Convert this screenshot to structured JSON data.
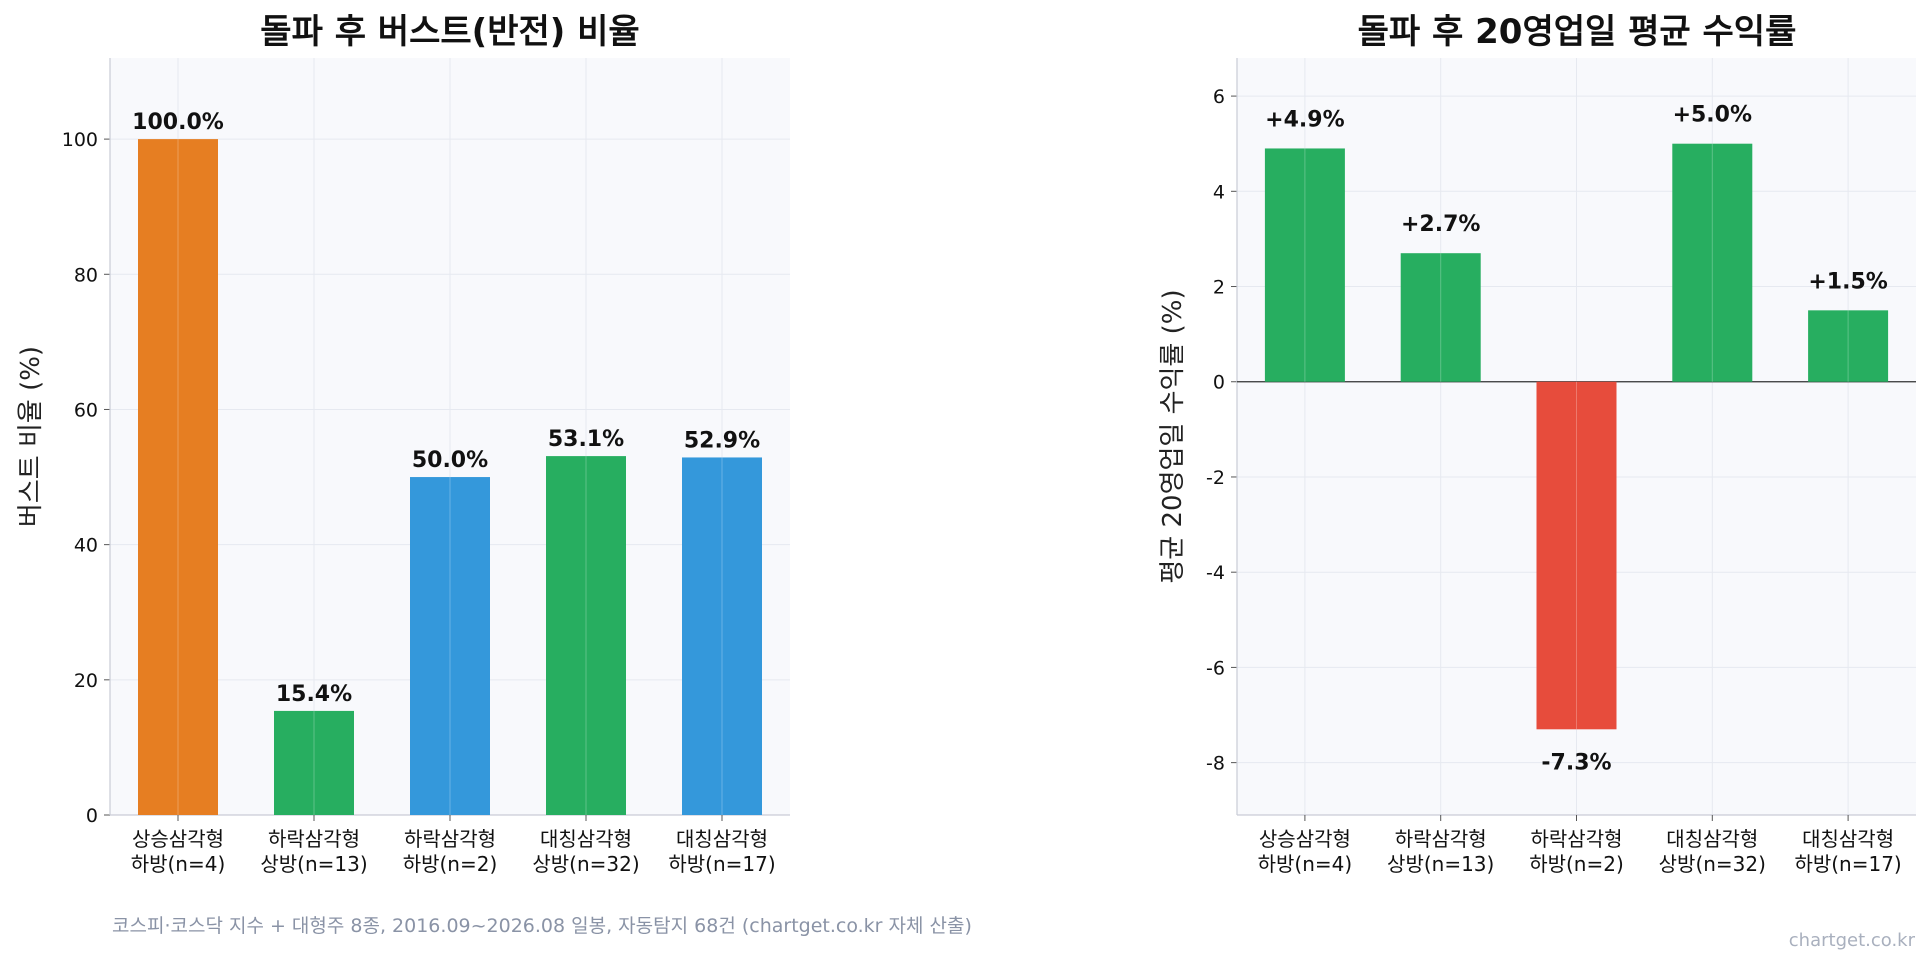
{
  "footer": {
    "source": "코스피·코스닥 지수 + 대형주 8종, 2016.09~2026.08 일봉, 자동탐지 68건 (chartget.co.kr 자체 산출)",
    "brand": "chartget.co.kr"
  },
  "chart_data": [
    {
      "type": "bar",
      "title": "돌파 후 버스트(반전) 비율",
      "ylabel": "버스트 비율 (%)",
      "categories": [
        [
          "상승삼각형",
          "하방(n=4)"
        ],
        [
          "하락삼각형",
          "상방(n=13)"
        ],
        [
          "하락삼각형",
          "하방(n=2)"
        ],
        [
          "대칭삼각형",
          "상방(n=32)"
        ],
        [
          "대칭삼각형",
          "하방(n=17)"
        ]
      ],
      "values": [
        100.0,
        15.4,
        50.0,
        53.1,
        52.9
      ],
      "labels": [
        "100.0%",
        "15.4%",
        "50.0%",
        "53.1%",
        "52.9%"
      ],
      "colors": [
        "#e67e22",
        "#27ae60",
        "#3498db",
        "#27ae60",
        "#3498db"
      ],
      "ylim": [
        0,
        112
      ],
      "yticks": [
        0,
        20,
        40,
        60,
        80,
        100
      ],
      "grid": true
    },
    {
      "type": "bar",
      "title": "돌파 후 20영업일 평균 수익률",
      "ylabel": "평균 20영업일 수익률 (%)",
      "categories": [
        [
          "상승삼각형",
          "하방(n=4)"
        ],
        [
          "하락삼각형",
          "상방(n=13)"
        ],
        [
          "하락삼각형",
          "하방(n=2)"
        ],
        [
          "대칭삼각형",
          "상방(n=32)"
        ],
        [
          "대칭삼각형",
          "하방(n=17)"
        ]
      ],
      "values": [
        4.9,
        2.7,
        -7.3,
        5.0,
        1.5
      ],
      "labels": [
        "+4.9%",
        "+2.7%",
        "-7.3%",
        "+5.0%",
        "+1.5%"
      ],
      "colors": [
        "#27ae60",
        "#27ae60",
        "#e74c3c",
        "#27ae60",
        "#27ae60"
      ],
      "ylim": [
        -9.1,
        6.8
      ],
      "yticks": [
        -8,
        -6,
        -4,
        -2,
        0,
        2,
        4,
        6
      ],
      "grid": true
    }
  ]
}
